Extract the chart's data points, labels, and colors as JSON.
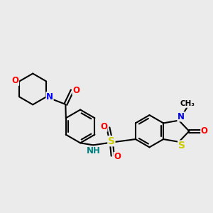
{
  "background_color": "#ebebeb",
  "atom_colors": {
    "C": "#000000",
    "N": "#0000ff",
    "O": "#ff0000",
    "S": "#cccc00",
    "NH": "#008080",
    "H": "#008080"
  },
  "bond_color": "#000000",
  "bond_width": 1.5,
  "font_size": 8.5
}
